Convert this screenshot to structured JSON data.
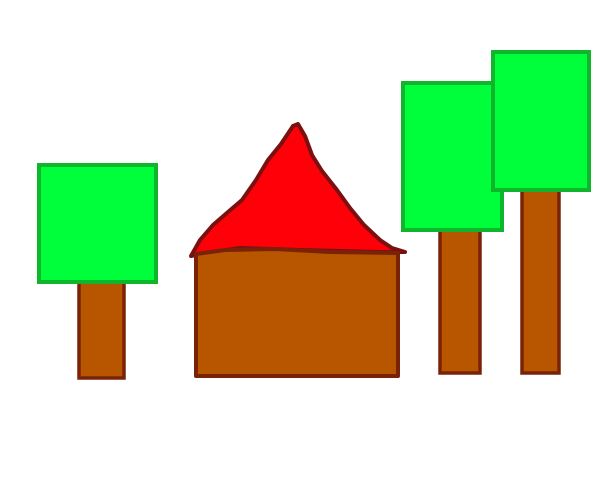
{
  "scene": {
    "background": "#ffffff",
    "colors": {
      "foliage": "#00ff3b",
      "foliage_outline": "#0fb52b",
      "trunk": "#b85600",
      "trunk_outline": "#7a2208",
      "roof": "#ff0008",
      "roof_outline": "#7a1010",
      "wall": "#b85600",
      "wall_outline": "#7a2208"
    },
    "objects": [
      "tree-left",
      "house",
      "tree-middle",
      "tree-right"
    ]
  }
}
